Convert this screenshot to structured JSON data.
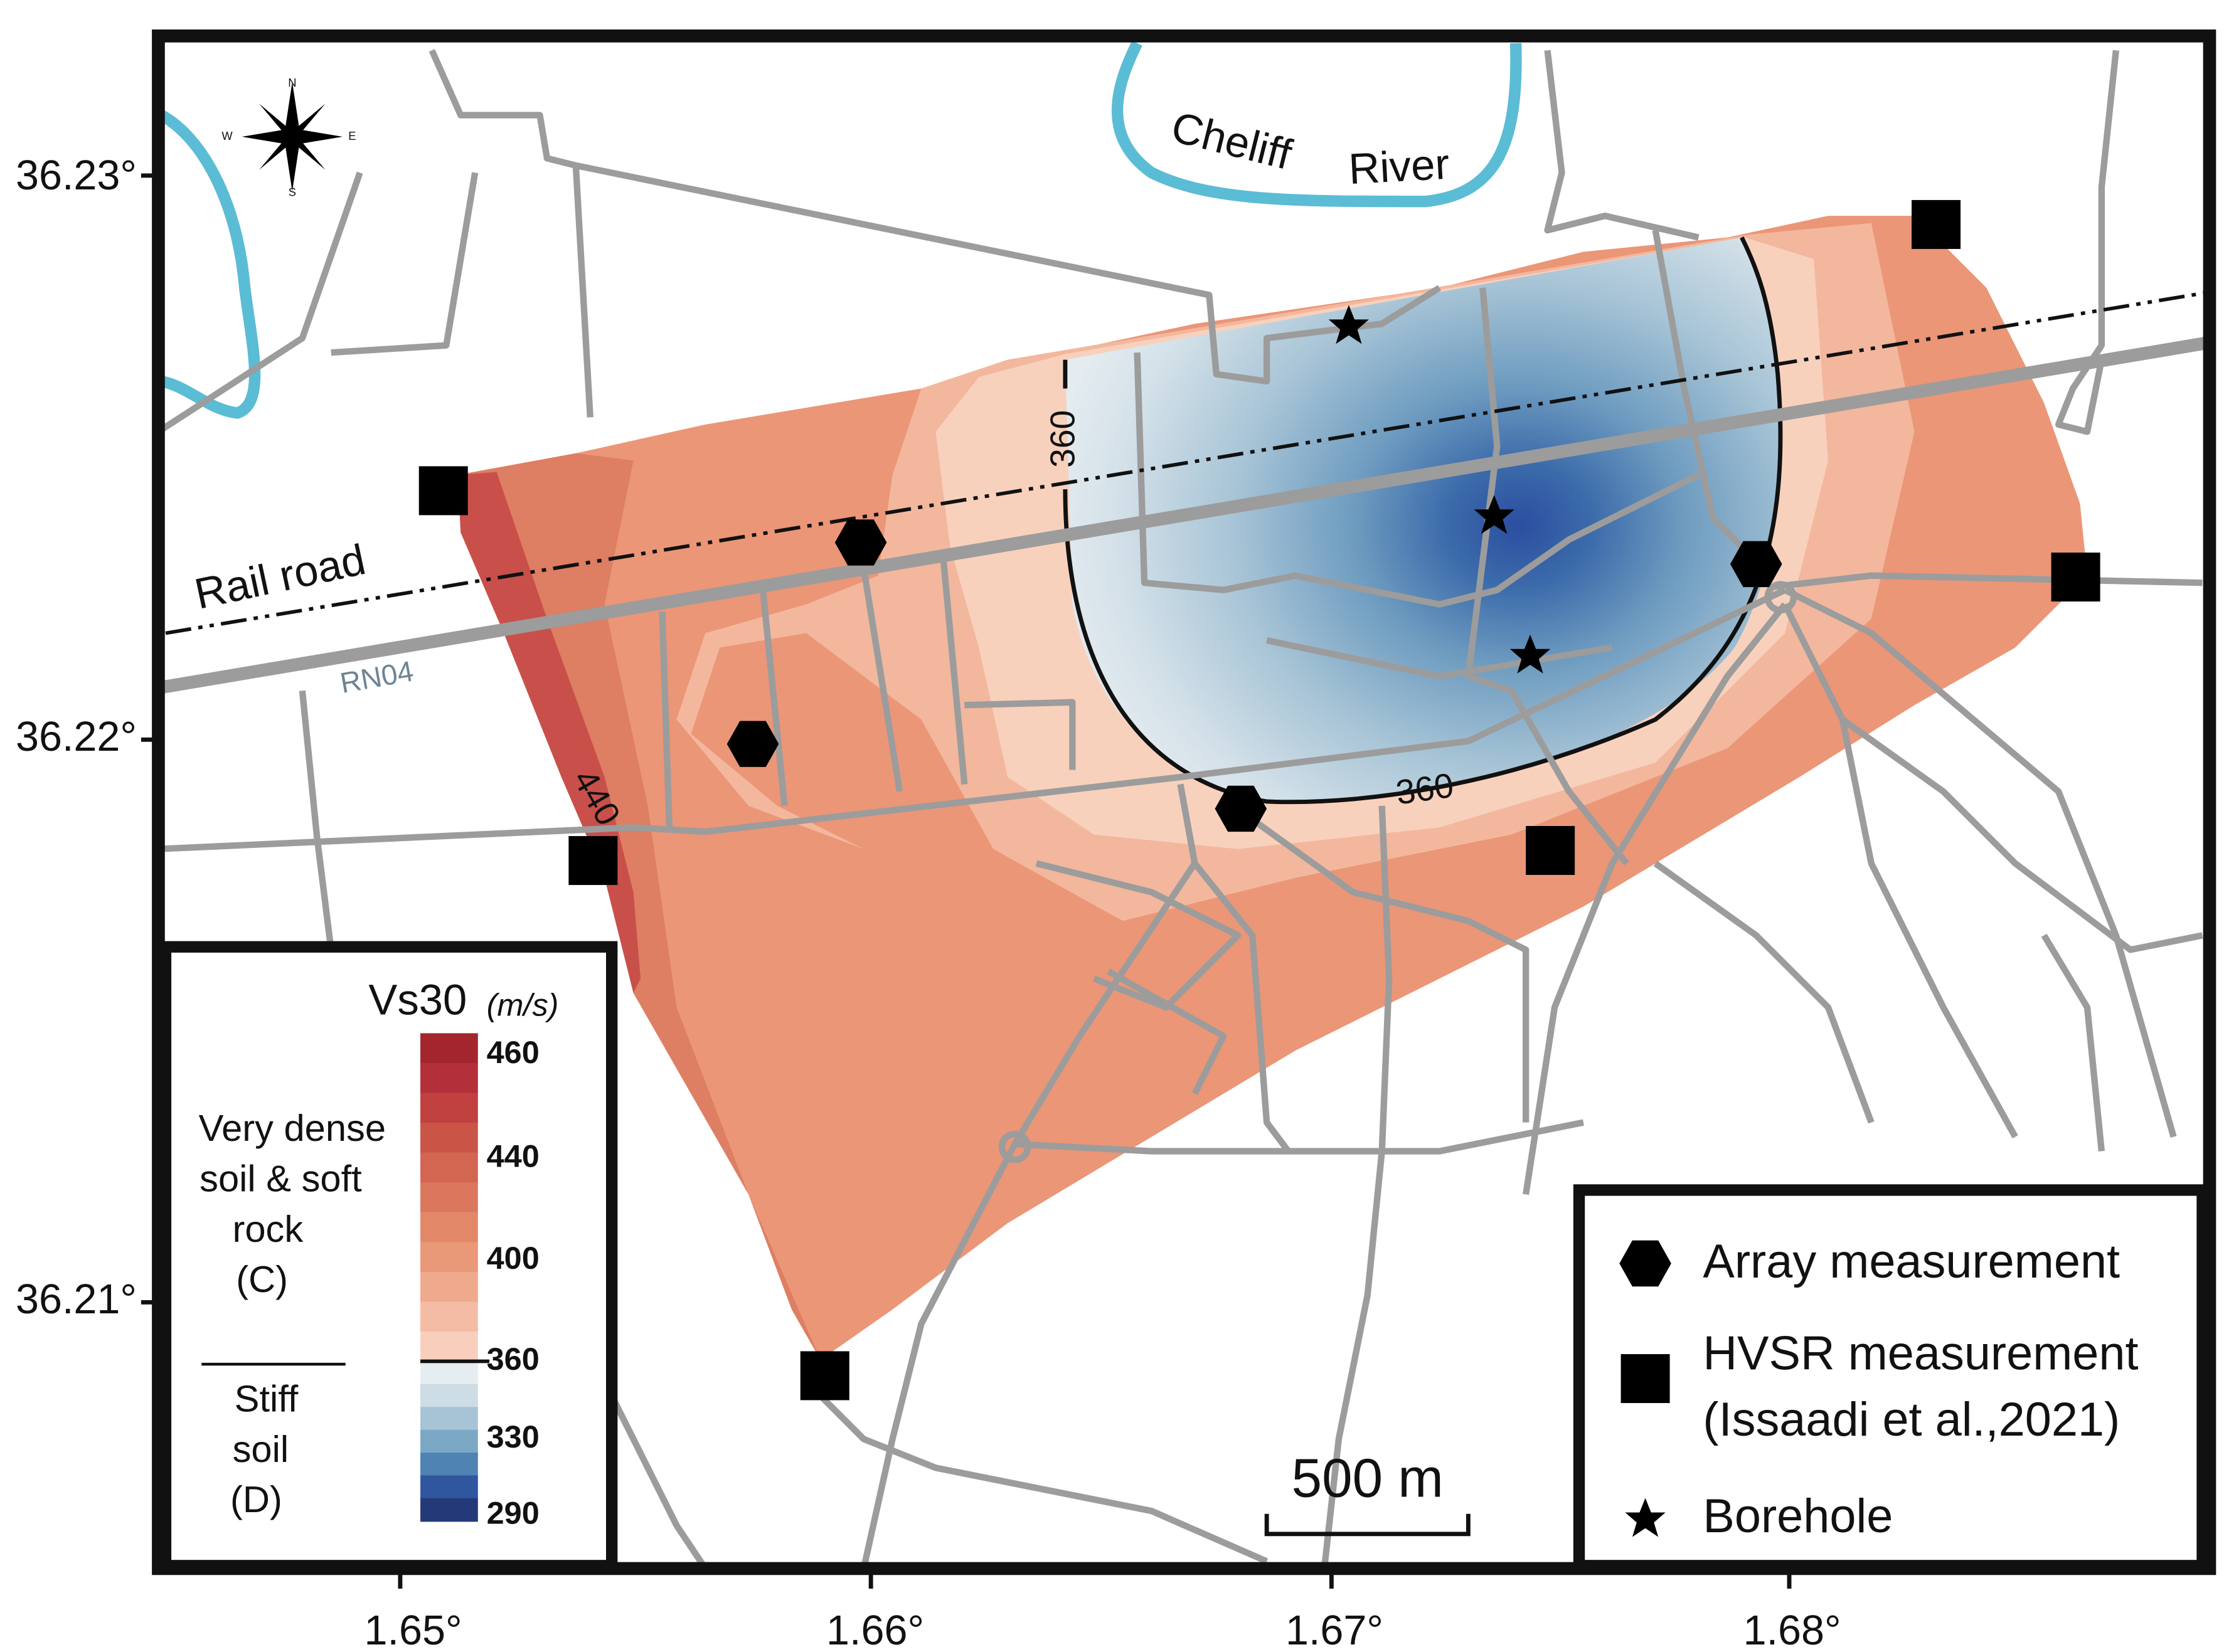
{
  "map": {
    "lat_ticks": [
      "36.23°",
      "36.22°",
      "36.21°"
    ],
    "lon_ticks": [
      "1.65°",
      "1.66°",
      "1.67°",
      "1.68°"
    ],
    "compass": {
      "n": "N",
      "s": "S",
      "e": "E",
      "w": "W"
    },
    "labels": {
      "river_1": "Cheliff",
      "river_2": "River",
      "railroad": "Rail road",
      "road": "RN04"
    },
    "contour_labels": [
      "360",
      "360",
      "440"
    ],
    "scale_bar": "500 m"
  },
  "colorbar": {
    "title": "Vs30",
    "unit": "(m/s)",
    "ticks": [
      "460",
      "440",
      "400",
      "360",
      "330",
      "290"
    ],
    "classes": [
      {
        "lines": [
          "Very dense",
          "soil & soft",
          "rock",
          "(C)"
        ]
      },
      {
        "lines": [
          "Stiff",
          "soil",
          "(D)"
        ]
      }
    ]
  },
  "legend": {
    "array": "Array measurement",
    "hvsr": [
      "HVSR measurement",
      "(Issaadi et al.,2021)"
    ],
    "borehole": "Borehole"
  }
}
